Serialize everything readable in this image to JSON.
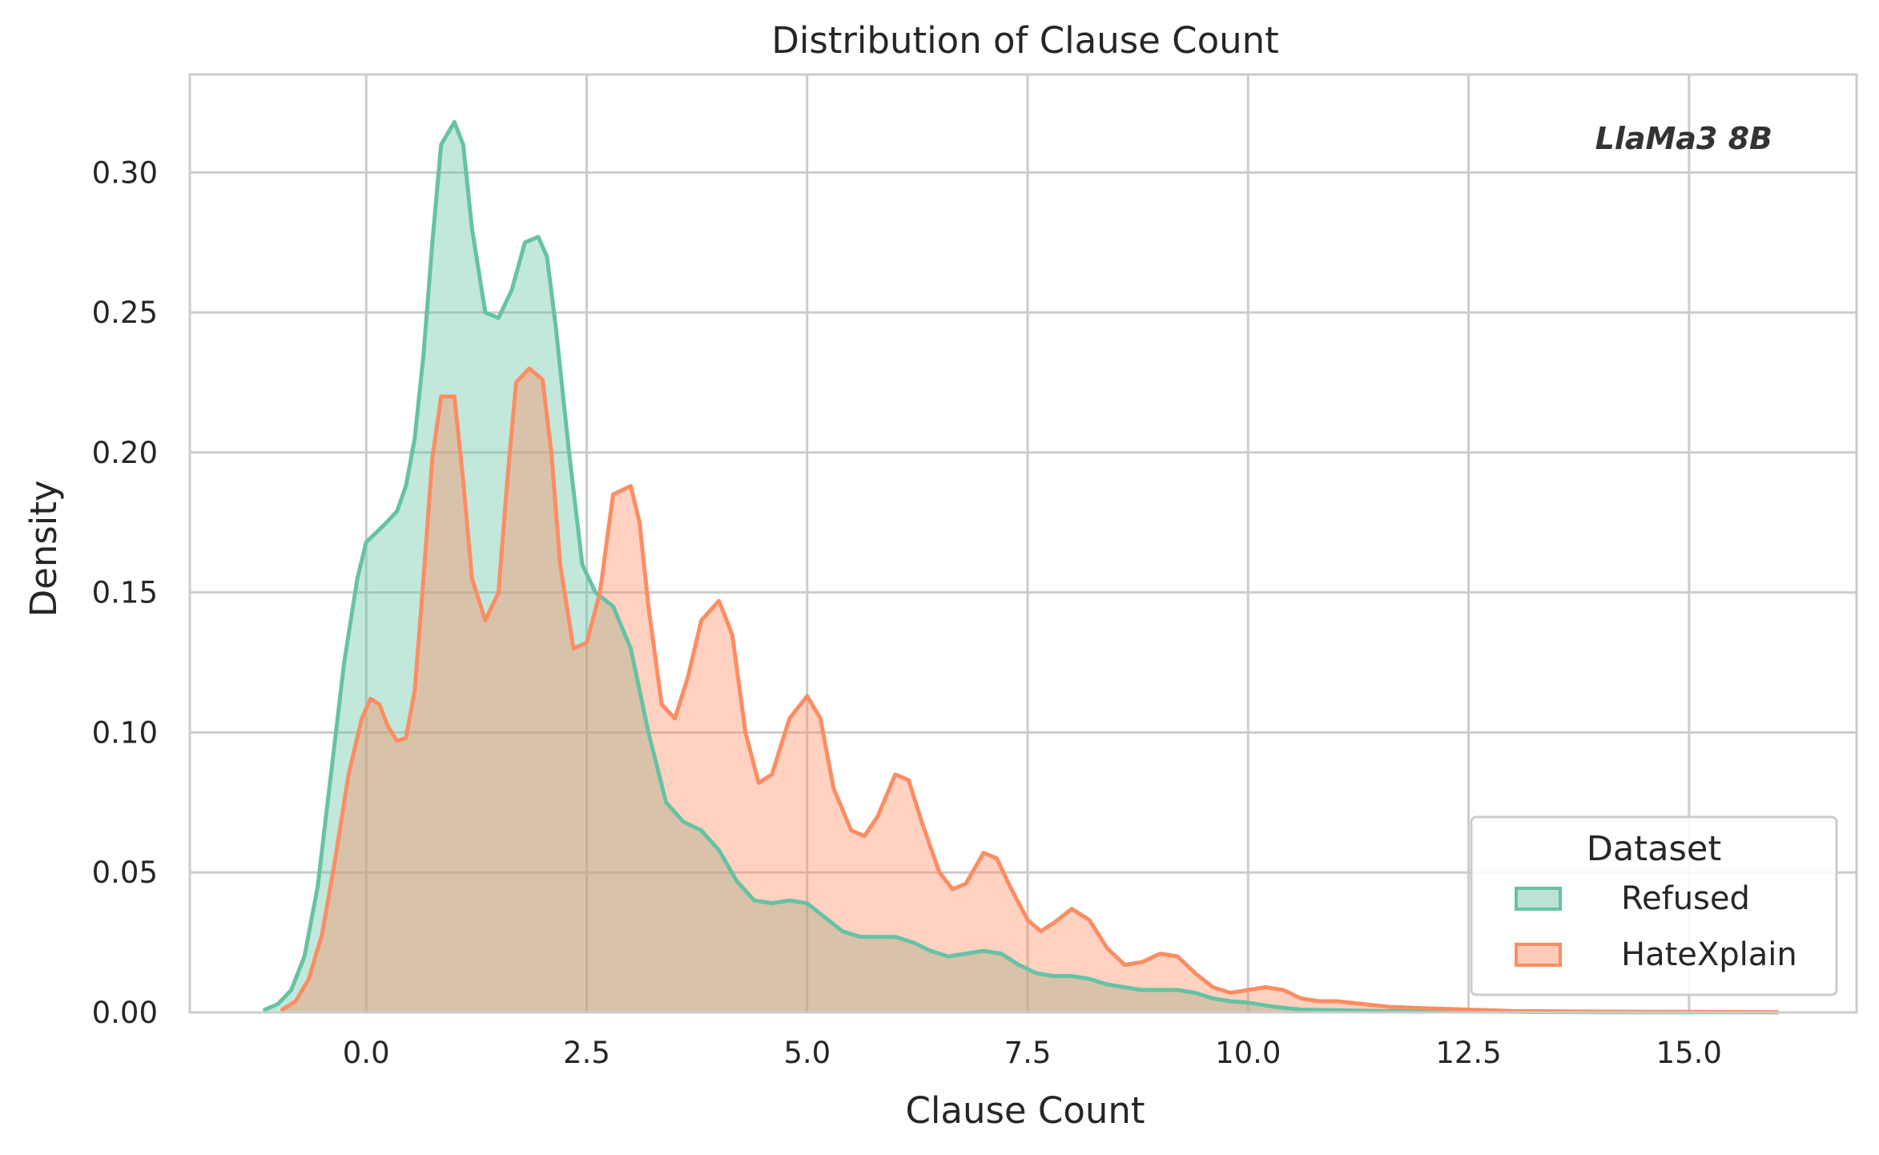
{
  "chart_data": {
    "type": "area",
    "title": "Distribution of Clause Count",
    "xlabel": "Clause Count",
    "ylabel": "Density",
    "xlim": [
      -2.0,
      16.9
    ],
    "ylim": [
      0.0,
      0.335
    ],
    "x_ticks": [
      0.0,
      2.5,
      5.0,
      7.5,
      10.0,
      12.5,
      15.0
    ],
    "x_tick_labels": [
      "0.0",
      "2.5",
      "5.0",
      "7.5",
      "10.0",
      "12.5",
      "15.0"
    ],
    "y_ticks": [
      0.0,
      0.05,
      0.1,
      0.15,
      0.2,
      0.25,
      0.3
    ],
    "y_tick_labels": [
      "0.00",
      "0.05",
      "0.10",
      "0.15",
      "0.20",
      "0.25",
      "0.30"
    ],
    "grid": true,
    "annotation": "LlaMa3 8B",
    "legend": {
      "title": "Dataset",
      "position": "lower-right"
    },
    "series": [
      {
        "name": "Refused",
        "color": "#66c2a5",
        "x": [
          -1.15,
          -1.0,
          -0.85,
          -0.7,
          -0.55,
          -0.4,
          -0.25,
          -0.1,
          0.0,
          0.2,
          0.35,
          0.45,
          0.55,
          0.65,
          0.75,
          0.85,
          1.0,
          1.1,
          1.2,
          1.35,
          1.5,
          1.65,
          1.8,
          1.95,
          2.05,
          2.15,
          2.3,
          2.45,
          2.6,
          2.8,
          3.0,
          3.2,
          3.4,
          3.6,
          3.8,
          4.0,
          4.2,
          4.4,
          4.6,
          4.8,
          5.0,
          5.2,
          5.4,
          5.6,
          5.8,
          6.0,
          6.2,
          6.4,
          6.6,
          6.8,
          7.0,
          7.2,
          7.4,
          7.6,
          7.8,
          8.0,
          8.2,
          8.4,
          8.6,
          8.8,
          9.0,
          9.2,
          9.4,
          9.6,
          9.8,
          10.0,
          10.3,
          10.6,
          11.0,
          11.5,
          12.0,
          12.5,
          13.0,
          14.0,
          15.0,
          16.0
        ],
        "y": [
          0.001,
          0.003,
          0.008,
          0.02,
          0.045,
          0.085,
          0.125,
          0.155,
          0.168,
          0.174,
          0.179,
          0.188,
          0.205,
          0.235,
          0.275,
          0.31,
          0.318,
          0.31,
          0.28,
          0.25,
          0.248,
          0.258,
          0.275,
          0.277,
          0.27,
          0.245,
          0.2,
          0.16,
          0.15,
          0.145,
          0.13,
          0.1,
          0.075,
          0.068,
          0.065,
          0.058,
          0.047,
          0.04,
          0.039,
          0.04,
          0.039,
          0.034,
          0.029,
          0.027,
          0.027,
          0.027,
          0.025,
          0.022,
          0.02,
          0.021,
          0.022,
          0.021,
          0.017,
          0.014,
          0.013,
          0.013,
          0.012,
          0.01,
          0.009,
          0.008,
          0.008,
          0.008,
          0.007,
          0.005,
          0.004,
          0.0035,
          0.002,
          0.001,
          0.0008,
          0.0005,
          0.0004,
          0.0003,
          0.0002,
          0.0001,
          0.0001,
          0.0001
        ]
      },
      {
        "name": "HateXplain",
        "color": "#fc8d62",
        "x": [
          -0.95,
          -0.8,
          -0.65,
          -0.5,
          -0.35,
          -0.2,
          -0.05,
          0.05,
          0.15,
          0.25,
          0.35,
          0.45,
          0.55,
          0.65,
          0.75,
          0.85,
          1.0,
          1.1,
          1.2,
          1.35,
          1.5,
          1.6,
          1.7,
          1.85,
          2.0,
          2.1,
          2.2,
          2.35,
          2.5,
          2.65,
          2.8,
          3.0,
          3.1,
          3.2,
          3.35,
          3.5,
          3.65,
          3.8,
          4.0,
          4.15,
          4.3,
          4.45,
          4.6,
          4.8,
          5.0,
          5.15,
          5.3,
          5.5,
          5.65,
          5.8,
          6.0,
          6.15,
          6.3,
          6.5,
          6.65,
          6.8,
          7.0,
          7.15,
          7.3,
          7.5,
          7.65,
          7.8,
          8.0,
          8.2,
          8.4,
          8.6,
          8.8,
          9.0,
          9.2,
          9.4,
          9.6,
          9.8,
          10.0,
          10.2,
          10.4,
          10.6,
          10.8,
          11.0,
          11.3,
          11.6,
          12.0,
          12.5,
          13.0,
          14.0,
          15.0,
          16.0
        ],
        "y": [
          0.001,
          0.004,
          0.012,
          0.028,
          0.055,
          0.085,
          0.105,
          0.112,
          0.11,
          0.102,
          0.097,
          0.098,
          0.115,
          0.155,
          0.198,
          0.22,
          0.22,
          0.19,
          0.155,
          0.14,
          0.15,
          0.19,
          0.225,
          0.23,
          0.226,
          0.2,
          0.16,
          0.13,
          0.132,
          0.15,
          0.185,
          0.188,
          0.175,
          0.145,
          0.11,
          0.105,
          0.12,
          0.14,
          0.147,
          0.135,
          0.1,
          0.082,
          0.085,
          0.105,
          0.113,
          0.105,
          0.08,
          0.065,
          0.063,
          0.07,
          0.085,
          0.083,
          0.068,
          0.05,
          0.044,
          0.046,
          0.057,
          0.055,
          0.045,
          0.033,
          0.029,
          0.032,
          0.037,
          0.033,
          0.023,
          0.017,
          0.018,
          0.021,
          0.02,
          0.014,
          0.009,
          0.007,
          0.008,
          0.009,
          0.008,
          0.005,
          0.004,
          0.004,
          0.003,
          0.002,
          0.0015,
          0.001,
          0.0005,
          0.0003,
          0.0002,
          0.0001
        ]
      }
    ]
  }
}
